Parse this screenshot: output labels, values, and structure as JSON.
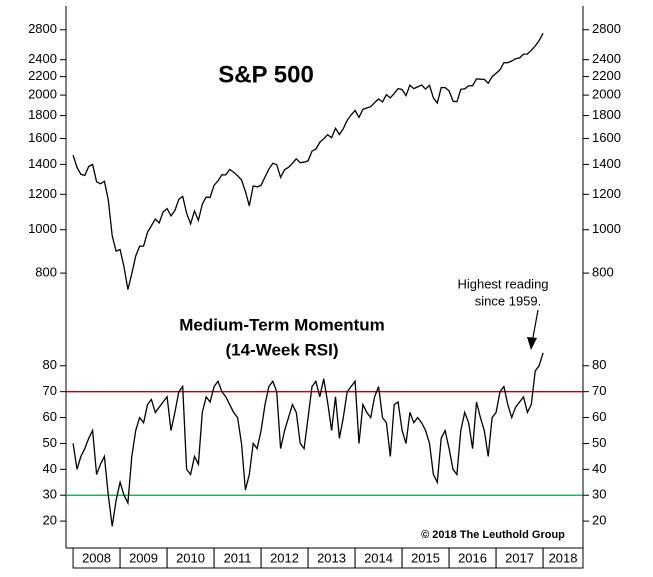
{
  "chart_data": [
    {
      "type": "line",
      "title": "S&P 500",
      "log_scale": true,
      "ylim": [
        700,
        3100
      ],
      "yticks": [
        800,
        1000,
        1200,
        1400,
        1600,
        1800,
        2000,
        2200,
        2400,
        2800
      ],
      "xlim": [
        2007.85,
        2018.85
      ],
      "x": [
        2008,
        2008.083,
        2008.167,
        2008.25,
        2008.333,
        2008.417,
        2008.5,
        2008.583,
        2008.667,
        2008.75,
        2008.833,
        2008.917,
        2009,
        2009.083,
        2009.167,
        2009.25,
        2009.333,
        2009.417,
        2009.5,
        2009.583,
        2009.667,
        2009.75,
        2009.833,
        2009.917,
        2010,
        2010.083,
        2010.167,
        2010.25,
        2010.333,
        2010.417,
        2010.5,
        2010.583,
        2010.667,
        2010.75,
        2010.833,
        2010.917,
        2011,
        2011.083,
        2011.167,
        2011.25,
        2011.333,
        2011.417,
        2011.5,
        2011.583,
        2011.667,
        2011.75,
        2011.833,
        2011.917,
        2012,
        2012.083,
        2012.167,
        2012.25,
        2012.333,
        2012.417,
        2012.5,
        2012.583,
        2012.667,
        2012.75,
        2012.833,
        2012.917,
        2013,
        2013.083,
        2013.167,
        2013.25,
        2013.333,
        2013.417,
        2013.5,
        2013.583,
        2013.667,
        2013.75,
        2013.833,
        2013.917,
        2014,
        2014.083,
        2014.167,
        2014.25,
        2014.333,
        2014.417,
        2014.5,
        2014.583,
        2014.667,
        2014.75,
        2014.833,
        2014.917,
        2015,
        2015.083,
        2015.167,
        2015.25,
        2015.333,
        2015.417,
        2015.5,
        2015.583,
        2015.667,
        2015.75,
        2015.833,
        2015.917,
        2016,
        2016.083,
        2016.167,
        2016.25,
        2016.333,
        2016.417,
        2016.5,
        2016.583,
        2016.667,
        2016.75,
        2016.833,
        2016.917,
        2017,
        2017.083,
        2017.167,
        2017.25,
        2017.333,
        2017.417,
        2017.5,
        2017.583,
        2017.667,
        2017.75,
        2017.833,
        2017.917,
        2018
      ],
      "series": [
        {
          "name": "S&P 500",
          "color": "#000000",
          "values": [
            1468,
            1378,
            1330,
            1322,
            1385,
            1400,
            1280,
            1267,
            1283,
            1166,
            969,
            896,
            903,
            826,
            735,
            798,
            873,
            919,
            919,
            987,
            1021,
            1057,
            1036,
            1096,
            1115,
            1074,
            1104,
            1169,
            1187,
            1089,
            1031,
            1102,
            1049,
            1141,
            1183,
            1181,
            1258,
            1286,
            1327,
            1326,
            1364,
            1345,
            1321,
            1292,
            1219,
            1131,
            1253,
            1247,
            1258,
            1312,
            1366,
            1408,
            1398,
            1310,
            1362,
            1379,
            1407,
            1441,
            1412,
            1416,
            1426,
            1498,
            1515,
            1569,
            1597,
            1631,
            1606,
            1686,
            1633,
            1682,
            1757,
            1806,
            1848,
            1783,
            1859,
            1872,
            1884,
            1924,
            1960,
            1931,
            2003,
            1972,
            2018,
            2068,
            2059,
            1995,
            2105,
            2068,
            2086,
            2107,
            2063,
            2104,
            1972,
            1920,
            2079,
            2080,
            2044,
            1940,
            1932,
            2060,
            2065,
            2097,
            2099,
            2174,
            2171,
            2168,
            2126,
            2199,
            2239,
            2279,
            2364,
            2363,
            2384,
            2412,
            2423,
            2470,
            2472,
            2519,
            2575,
            2648,
            2750
          ]
        }
      ]
    },
    {
      "type": "line",
      "title": [
        "Medium-Term Momentum",
        "(14-Week RSI)"
      ],
      "ylim": [
        10,
        100
      ],
      "yticks": [
        20,
        30,
        40,
        50,
        60,
        70,
        80
      ],
      "xlim": [
        2007.85,
        2018.85
      ],
      "xticks": [
        2008,
        2009,
        2010,
        2011,
        2012,
        2013,
        2014,
        2015,
        2016,
        2017,
        2018
      ],
      "reference_lines": [
        {
          "value": 70,
          "color": "#c00000"
        },
        {
          "value": 30,
          "color": "#00a050"
        }
      ],
      "annotations": [
        "Highest reading",
        "since 1959.",
        "© 2018 The Leuthold Group"
      ],
      "x": [
        2008,
        2008.083,
        2008.167,
        2008.25,
        2008.333,
        2008.417,
        2008.5,
        2008.583,
        2008.667,
        2008.75,
        2008.833,
        2008.917,
        2009,
        2009.083,
        2009.167,
        2009.25,
        2009.333,
        2009.417,
        2009.5,
        2009.583,
        2009.667,
        2009.75,
        2009.833,
        2009.917,
        2010,
        2010.083,
        2010.167,
        2010.25,
        2010.333,
        2010.417,
        2010.5,
        2010.583,
        2010.667,
        2010.75,
        2010.833,
        2010.917,
        2011,
        2011.083,
        2011.167,
        2011.25,
        2011.333,
        2011.417,
        2011.5,
        2011.583,
        2011.667,
        2011.75,
        2011.833,
        2011.917,
        2012,
        2012.083,
        2012.167,
        2012.25,
        2012.333,
        2012.417,
        2012.5,
        2012.583,
        2012.667,
        2012.75,
        2012.833,
        2012.917,
        2013,
        2013.083,
        2013.167,
        2013.25,
        2013.333,
        2013.417,
        2013.5,
        2013.583,
        2013.667,
        2013.75,
        2013.833,
        2013.917,
        2014,
        2014.083,
        2014.167,
        2014.25,
        2014.333,
        2014.417,
        2014.5,
        2014.583,
        2014.667,
        2014.75,
        2014.833,
        2014.917,
        2015,
        2015.083,
        2015.167,
        2015.25,
        2015.333,
        2015.417,
        2015.5,
        2015.583,
        2015.667,
        2015.75,
        2015.833,
        2015.917,
        2016,
        2016.083,
        2016.167,
        2016.25,
        2016.333,
        2016.417,
        2016.5,
        2016.583,
        2016.667,
        2016.75,
        2016.833,
        2016.917,
        2017,
        2017.083,
        2017.167,
        2017.25,
        2017.333,
        2017.417,
        2017.5,
        2017.583,
        2017.667,
        2017.75,
        2017.833,
        2017.917,
        2018
      ],
      "series": [
        {
          "name": "14-Week RSI",
          "color": "#000000",
          "values": [
            50,
            40,
            45,
            48,
            52,
            55,
            38,
            42,
            45,
            30,
            18,
            28,
            35,
            30,
            27,
            45,
            55,
            60,
            58,
            65,
            67,
            62,
            64,
            66,
            68,
            55,
            62,
            70,
            72,
            40,
            38,
            45,
            42,
            62,
            68,
            66,
            72,
            74,
            70,
            68,
            65,
            62,
            60,
            50,
            32,
            38,
            50,
            48,
            55,
            65,
            72,
            74,
            70,
            48,
            55,
            60,
            65,
            62,
            50,
            48,
            60,
            72,
            74,
            68,
            75,
            66,
            55,
            68,
            52,
            60,
            70,
            72,
            74,
            50,
            65,
            62,
            60,
            68,
            72,
            60,
            58,
            45,
            65,
            66,
            55,
            50,
            62,
            58,
            60,
            58,
            55,
            50,
            38,
            35,
            52,
            55,
            48,
            40,
            38,
            55,
            62,
            58,
            48,
            66,
            60,
            55,
            45,
            60,
            62,
            70,
            72,
            65,
            60,
            64,
            66,
            68,
            62,
            65,
            78,
            80,
            85
          ]
        }
      ]
    }
  ]
}
